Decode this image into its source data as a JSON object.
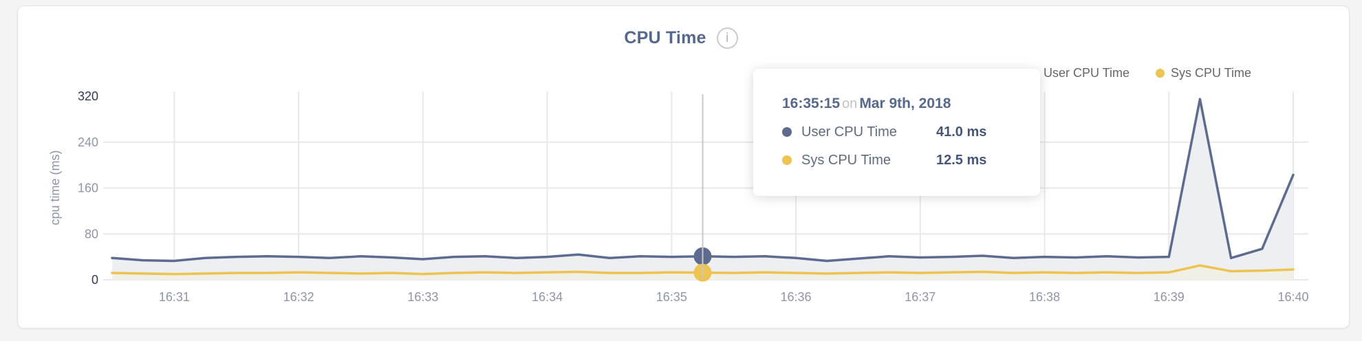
{
  "header": {
    "title": "CPU Time",
    "info_glyph": "i"
  },
  "legend": {
    "items": [
      {
        "label": "User CPU Time",
        "color": "#5d6b8e"
      },
      {
        "label": "Sys CPU Time",
        "color": "#edc351"
      }
    ]
  },
  "tooltip": {
    "time": "16:35:15",
    "on_word": "on",
    "date": "Mar 9th, 2018",
    "point_index": 19,
    "rows": [
      {
        "label": "User CPU Time",
        "value_text": "41.0 ms",
        "color": "#5d6b8e"
      },
      {
        "label": "Sys CPU Time",
        "value_text": "12.5 ms",
        "color": "#edc351"
      }
    ]
  },
  "chart_data": {
    "type": "line",
    "title": "CPU Time",
    "xlabel": "",
    "ylabel": "cpu time (ms)",
    "ylim": [
      0,
      320
    ],
    "yticks": [
      0,
      80,
      160,
      240,
      320
    ],
    "x_tick_labels": [
      "16:31",
      "16:32",
      "16:33",
      "16:34",
      "16:35",
      "16:36",
      "16:37",
      "16:38",
      "16:39",
      "16:40"
    ],
    "grid": true,
    "legend_position": "top-right",
    "categories": [
      "16:30:30",
      "16:30:45",
      "16:31:00",
      "16:31:15",
      "16:31:30",
      "16:31:45",
      "16:32:00",
      "16:32:15",
      "16:32:30",
      "16:32:45",
      "16:33:00",
      "16:33:15",
      "16:33:30",
      "16:33:45",
      "16:34:00",
      "16:34:15",
      "16:34:30",
      "16:34:45",
      "16:35:00",
      "16:35:15",
      "16:35:30",
      "16:35:45",
      "16:36:00",
      "16:36:15",
      "16:36:30",
      "16:36:45",
      "16:37:00",
      "16:37:15",
      "16:37:30",
      "16:37:45",
      "16:38:00",
      "16:38:15",
      "16:38:30",
      "16:38:45",
      "16:39:00",
      "16:39:15",
      "16:39:30",
      "16:39:45",
      "16:40:00"
    ],
    "series": [
      {
        "name": "User CPU Time",
        "color": "#5d6b8e",
        "fill": "#edeff3",
        "values": [
          38,
          34,
          33,
          38,
          40,
          41,
          40,
          38,
          41,
          39,
          36,
          40,
          41,
          38,
          40,
          44,
          38,
          41,
          40,
          41,
          40,
          41,
          38,
          33,
          37,
          41,
          39,
          40,
          42,
          38,
          40,
          39,
          41,
          39,
          40,
          315,
          38,
          54,
          183
        ]
      },
      {
        "name": "Sys CPU Time",
        "color": "#edc351",
        "fill": "#f1efe6",
        "values": [
          12,
          11,
          10,
          11,
          12,
          12,
          13,
          12,
          11,
          12,
          10,
          12,
          13,
          12,
          13,
          14,
          12,
          12,
          13,
          12.5,
          12,
          13,
          12,
          11,
          12,
          13,
          12,
          13,
          14,
          12,
          13,
          12,
          13,
          12,
          13,
          25,
          15,
          16,
          18
        ]
      }
    ]
  },
  "colors": {
    "page_bg": "#f4f4f4",
    "card_bg": "#ffffff",
    "card_border": "#e3e3e3",
    "title": "#55688c",
    "legend_text": "#666666",
    "grid": "#e8e8e8",
    "hover_line": "#c8c8c8",
    "axis_label": "#8d96a8",
    "axis_label_strong": "#2d3b55",
    "tooltip_time": "#56688c",
    "tooltip_on": "#c3c3c3",
    "tooltip_value": "#45567a"
  }
}
